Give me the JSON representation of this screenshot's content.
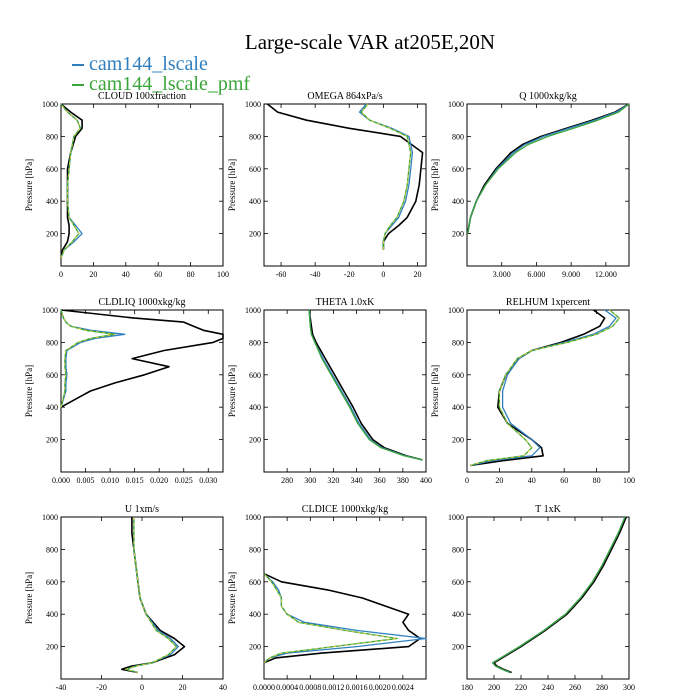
{
  "figure": {
    "title": "Large-scale VAR at205E,20N",
    "legend": [
      {
        "label": "cam144_lscale",
        "color": "#2f7fbf"
      },
      {
        "label": "cam144_lscale_pmf",
        "color": "#3aa53a"
      }
    ]
  },
  "chart_data": [
    {
      "type": "line",
      "title": "CLOUD 100xfraction",
      "ylabel": "Pressure [hPa]",
      "xlim": [
        0,
        100
      ],
      "ylim": [
        1000,
        0
      ],
      "xticks": [
        "0",
        "20",
        "40",
        "60",
        "80",
        "100"
      ],
      "xtick_values": [
        0,
        20,
        40,
        60,
        80,
        100
      ],
      "yticks": [
        "200",
        "400",
        "600",
        "800",
        "1000"
      ],
      "ytick_values": [
        200,
        400,
        600,
        800,
        1000
      ],
      "pressure": [
        50,
        100,
        150,
        200,
        250,
        300,
        400,
        500,
        600,
        700,
        800,
        850,
        900,
        950,
        1000
      ],
      "series": [
        {
          "name": "cam144_lscale",
          "color": "#2f7fbf",
          "values": [
            0,
            2,
            8,
            13,
            9,
            5,
            4,
            4,
            5,
            6,
            8,
            12,
            10,
            4,
            0
          ]
        },
        {
          "name": "cam144_lscale_pmf",
          "color": "#3aa53a",
          "dash": true,
          "values": [
            0,
            2,
            7,
            11,
            8,
            5,
            4,
            4,
            5,
            6,
            8,
            12,
            10,
            4,
            0
          ]
        },
        {
          "name": "",
          "color": "#000000",
          "values": [
            0,
            1,
            4,
            5,
            5,
            4,
            4,
            4,
            4,
            6,
            9,
            13,
            13,
            6,
            0
          ]
        }
      ]
    },
    {
      "type": "line",
      "title": "OMEGA 864xPa/s",
      "ylabel": "Pressure [hPa]",
      "xlim": [
        -70,
        25
      ],
      "ylim": [
        1000,
        0
      ],
      "xticks": [
        "-60",
        "-40",
        "-20",
        "0",
        "20"
      ],
      "xtick_values": [
        -60,
        -40,
        -20,
        0,
        20
      ],
      "yticks": [
        "200",
        "400",
        "600",
        "800",
        "1000"
      ],
      "ytick_values": [
        200,
        400,
        600,
        800,
        1000
      ],
      "pressure": [
        100,
        150,
        200,
        250,
        300,
        400,
        500,
        600,
        700,
        800,
        850,
        900,
        950,
        1000
      ],
      "series": [
        {
          "name": "cam144_lscale",
          "color": "#2f7fbf",
          "values": [
            0,
            0,
            1,
            5,
            9,
            13,
            15,
            16,
            17,
            15,
            5,
            -8,
            -14,
            -10
          ]
        },
        {
          "name": "cam144_lscale_pmf",
          "color": "#3aa53a",
          "dash": true,
          "values": [
            0,
            0,
            1,
            4,
            8,
            12,
            14,
            15,
            16,
            14,
            4,
            -8,
            -13,
            -9
          ]
        },
        {
          "name": "",
          "color": "#000000",
          "values": [
            0,
            0,
            3,
            9,
            14,
            19,
            21,
            22,
            23,
            10,
            -20,
            -45,
            -62,
            -68
          ]
        }
      ]
    },
    {
      "type": "line",
      "title": "Q 1000xkg/kg",
      "ylabel": "Pressure [hPa]",
      "xlim": [
        0,
        14
      ],
      "ylim": [
        1000,
        0
      ],
      "xticks": [
        "3.000",
        "6.000",
        "9.000",
        "12.000"
      ],
      "xtick_values": [
        3,
        6,
        9,
        12
      ],
      "yticks": [
        "200",
        "400",
        "600",
        "800",
        "1000"
      ],
      "ytick_values": [
        200,
        400,
        600,
        800,
        1000
      ],
      "pressure": [
        200,
        300,
        400,
        500,
        600,
        700,
        750,
        800,
        850,
        900,
        950,
        1000
      ],
      "series": [
        {
          "name": "cam144_lscale",
          "color": "#2f7fbf",
          "values": [
            0.05,
            0.3,
            0.8,
            1.6,
            2.6,
            4.0,
            5.0,
            6.6,
            8.8,
            11.0,
            12.9,
            14.0
          ]
        },
        {
          "name": "cam144_lscale_pmf",
          "color": "#3aa53a",
          "dash": false,
          "values": [
            0.05,
            0.3,
            0.8,
            1.6,
            2.7,
            4.2,
            5.3,
            7.0,
            9.2,
            11.3,
            13.1,
            14.0
          ]
        },
        {
          "name": "",
          "color": "#000000",
          "values": [
            0.05,
            0.3,
            0.8,
            1.5,
            2.5,
            3.8,
            4.8,
            6.4,
            8.6,
            10.8,
            12.8,
            14.0
          ]
        }
      ]
    },
    {
      "type": "line",
      "title": "CLDLIQ 1000xkg/kg",
      "ylabel": "Pressure [hPa]",
      "xlim": [
        0,
        0.033
      ],
      "ylim": [
        1000,
        0
      ],
      "xticks": [
        "0.000",
        "0.005",
        "0.010",
        "0.015",
        "0.020",
        "0.025",
        "0.030"
      ],
      "xtick_values": [
        0,
        0.005,
        0.01,
        0.015,
        0.02,
        0.025,
        0.03
      ],
      "yticks": [
        "200",
        "400",
        "600",
        "800",
        "1000"
      ],
      "ytick_values": [
        200,
        400,
        600,
        800,
        1000
      ],
      "pressure": [
        400,
        450,
        500,
        550,
        600,
        650,
        700,
        750,
        800,
        825,
        850,
        875,
        900,
        925,
        950,
        1000
      ],
      "series": [
        {
          "name": "cam144_lscale",
          "color": "#2f7fbf",
          "values": [
            0,
            0.0005,
            0.001,
            0.001,
            0.0012,
            0.001,
            0.001,
            0.0012,
            0.004,
            0.007,
            0.013,
            0.006,
            0.002,
            0.001,
            0.0005,
            0
          ]
        },
        {
          "name": "cam144_lscale_pmf",
          "color": "#3aa53a",
          "dash": true,
          "values": [
            0,
            0.0004,
            0.0008,
            0.0008,
            0.001,
            0.0008,
            0.0008,
            0.001,
            0.0035,
            0.006,
            0.011,
            0.005,
            0.002,
            0.001,
            0.0005,
            0
          ]
        },
        {
          "name": "",
          "color": "#000000",
          "values": [
            0,
            0.003,
            0.006,
            0.011,
            0.017,
            0.022,
            0.0145,
            0.021,
            0.031,
            0.033,
            0.033,
            0.029,
            0.027,
            0.025,
            0.015,
            0
          ]
        }
      ]
    },
    {
      "type": "line",
      "title": "THETA 1.0xK",
      "ylabel": "Pressure [hPa]",
      "xlim": [
        260,
        400
      ],
      "ylim": [
        1000,
        0
      ],
      "xticks": [
        "280",
        "300",
        "320",
        "340",
        "360",
        "380",
        "400"
      ],
      "xtick_values": [
        280,
        300,
        320,
        340,
        360,
        380,
        400
      ],
      "yticks": [
        "200",
        "400",
        "600",
        "800",
        "1000"
      ],
      "ytick_values": [
        200,
        400,
        600,
        800,
        1000
      ],
      "pressure": [
        75,
        100,
        150,
        200,
        300,
        400,
        500,
        600,
        700,
        800,
        850,
        900,
        1000
      ],
      "series": [
        {
          "name": "cam144_lscale",
          "color": "#2f7fbf",
          "values": [
            397,
            382,
            362,
            352,
            342,
            335,
            327,
            319,
            311,
            304,
            301,
            300,
            299
          ]
        },
        {
          "name": "cam144_lscale_pmf",
          "color": "#3aa53a",
          "dash": false,
          "values": [
            397,
            381,
            361,
            351,
            341,
            334,
            326,
            318,
            310,
            304,
            301,
            300,
            299
          ]
        },
        {
          "name": "",
          "color": "#000000",
          "values": [
            397,
            383,
            364,
            354,
            344,
            337,
            329,
            321,
            313,
            305,
            302,
            301,
            299
          ]
        }
      ]
    },
    {
      "type": "line",
      "title": "RELHUM 1xpercent",
      "ylabel": "Pressure [hPa]",
      "xlim": [
        0,
        100
      ],
      "ylim": [
        1000,
        0
      ],
      "xticks": [
        "0",
        "20",
        "40",
        "60",
        "80",
        "100"
      ],
      "xtick_values": [
        0,
        20,
        40,
        60,
        80,
        100
      ],
      "yticks": [
        "200",
        "400",
        "600",
        "800",
        "1000"
      ],
      "ytick_values": [
        200,
        400,
        600,
        800,
        1000
      ],
      "pressure": [
        40,
        70,
        100,
        150,
        200,
        300,
        400,
        500,
        600,
        700,
        750,
        800,
        850,
        900,
        950,
        1000
      ],
      "series": [
        {
          "name": "cam144_lscale",
          "color": "#2f7fbf",
          "values": [
            2,
            15,
            40,
            45,
            40,
            27,
            22,
            22,
            25,
            32,
            40,
            60,
            78,
            88,
            92,
            85
          ]
        },
        {
          "name": "cam144_lscale_pmf",
          "color": "#3aa53a",
          "dash": true,
          "values": [
            2,
            12,
            35,
            40,
            36,
            25,
            20,
            20,
            24,
            31,
            40,
            62,
            80,
            90,
            94,
            88
          ]
        },
        {
          "name": "",
          "color": "#000000",
          "values": [
            2,
            22,
            47,
            46,
            40,
            25,
            19,
            20,
            24,
            32,
            40,
            58,
            72,
            82,
            85,
            78
          ]
        }
      ]
    },
    {
      "type": "line",
      "title": "U 1xm/s",
      "ylabel": "Pressure [hPa]",
      "xlim": [
        -40,
        40
      ],
      "ylim": [
        1000,
        0
      ],
      "xticks": [
        "-40",
        "-20",
        "0",
        "20",
        "40"
      ],
      "xtick_values": [
        -40,
        -20,
        0,
        20,
        40
      ],
      "yticks": [
        "200",
        "400",
        "600",
        "800",
        "1000"
      ],
      "ytick_values": [
        200,
        400,
        600,
        800,
        1000
      ],
      "pressure": [
        40,
        60,
        80,
        100,
        150,
        200,
        250,
        300,
        400,
        500,
        600,
        700,
        800,
        900,
        1000
      ],
      "series": [
        {
          "name": "cam144_lscale",
          "color": "#2f7fbf",
          "values": [
            -2,
            -8,
            -3,
            5,
            14,
            18,
            14,
            8,
            2,
            -1,
            -2,
            -3,
            -4,
            -4,
            -4
          ]
        },
        {
          "name": "cam144_lscale_pmf",
          "color": "#3aa53a",
          "dash": true,
          "values": [
            -2,
            -8,
            -3,
            5,
            13,
            17,
            13,
            7,
            2,
            -1,
            -2,
            -3,
            -4,
            -4,
            -4
          ]
        },
        {
          "name": "",
          "color": "#000000",
          "values": [
            -2,
            -10,
            -5,
            5,
            16,
            21,
            16,
            9,
            2,
            -1,
            -2,
            -3,
            -4,
            -5,
            -5
          ]
        }
      ]
    },
    {
      "type": "line",
      "title": "CLDICE 1000xkg/kg",
      "ylabel": "Pressure [hPa]",
      "xlim": [
        0,
        0.0028
      ],
      "ylim": [
        1000,
        0
      ],
      "xticks": [
        "0.0000",
        "0.0004",
        "0.0008",
        "0.0012",
        "0.0016",
        "0.0020",
        "0.0024"
      ],
      "xtick_values": [
        0,
        0.0004,
        0.0008,
        0.0012,
        0.0016,
        0.002,
        0.0024
      ],
      "yticks": [
        "200",
        "400",
        "600",
        "800",
        "1000"
      ],
      "ytick_values": [
        200,
        400,
        600,
        800,
        1000
      ],
      "pressure": [
        100,
        130,
        160,
        200,
        250,
        300,
        350,
        400,
        450,
        500,
        550,
        600,
        650
      ],
      "series": [
        {
          "name": "cam144_lscale",
          "color": "#2f7fbf",
          "values": [
            0,
            0.0001,
            0.0004,
            0.0016,
            0.0028,
            0.0016,
            0.0007,
            0.0004,
            0.0003,
            0.0003,
            0.00025,
            0.00015,
            0
          ]
        },
        {
          "name": "cam144_lscale_pmf",
          "color": "#3aa53a",
          "dash": true,
          "values": [
            0,
            0.0001,
            0.0003,
            0.0012,
            0.0023,
            0.0014,
            0.0006,
            0.0004,
            0.0003,
            0.0003,
            0.00022,
            0.00013,
            0
          ]
        },
        {
          "name": "",
          "color": "#000000",
          "values": [
            0,
            0.0002,
            0.001,
            0.0025,
            0.0027,
            0.0025,
            0.0024,
            0.0025,
            0.0021,
            0.0017,
            0.0011,
            0.0003,
            0
          ]
        }
      ]
    },
    {
      "type": "line",
      "title": "T 1xK",
      "ylabel": "",
      "xlim": [
        180,
        300
      ],
      "ylim": [
        1000,
        0
      ],
      "xticks": [
        "180",
        "200",
        "220",
        "240",
        "260",
        "280",
        "300"
      ],
      "xtick_values": [
        180,
        200,
        220,
        240,
        260,
        280,
        300
      ],
      "yticks": [
        "200",
        "400",
        "600",
        "800",
        "1000"
      ],
      "ytick_values": [
        200,
        400,
        600,
        800,
        1000
      ],
      "pressure": [
        40,
        60,
        80,
        100,
        120,
        150,
        200,
        300,
        400,
        500,
        600,
        700,
        800,
        900,
        1000
      ],
      "series": [
        {
          "name": "cam144_lscale",
          "color": "#2f7fbf",
          "values": [
            212,
            206,
            201,
            199,
            203,
            209,
            219,
            237,
            253,
            264,
            273,
            280,
            286,
            292,
            297
          ]
        },
        {
          "name": "cam144_lscale_pmf",
          "color": "#3aa53a",
          "dash": false,
          "values": [
            212,
            206,
            201,
            199,
            203,
            209,
            219,
            237,
            253,
            264,
            273,
            280,
            286,
            292,
            297
          ]
        },
        {
          "name": "",
          "color": "#000000",
          "values": [
            213,
            207,
            202,
            200,
            204,
            210,
            220,
            238,
            254,
            265,
            274,
            281,
            287,
            293,
            298
          ]
        }
      ]
    }
  ]
}
